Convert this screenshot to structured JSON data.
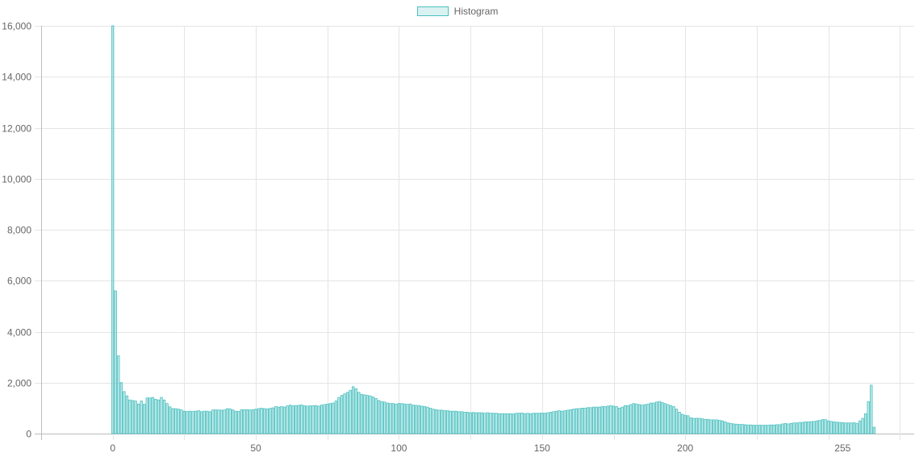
{
  "chart_data": {
    "type": "bar",
    "series": [
      {
        "name": "Histogram",
        "color": "#4bc0c0",
        "x_start": 0,
        "values": [
          16000,
          5600,
          3050,
          2000,
          1650,
          1480,
          1320,
          1300,
          1280,
          1160,
          1280,
          1150,
          1400,
          1400,
          1420,
          1350,
          1320,
          1420,
          1320,
          1180,
          1050,
          980,
          980,
          960,
          930,
          880,
          870,
          880,
          870,
          880,
          900,
          860,
          880,
          880,
          860,
          930,
          930,
          930,
          920,
          930,
          980,
          970,
          930,
          880,
          870,
          940,
          940,
          940,
          930,
          940,
          960,
          980,
          1000,
          980,
          970,
          990,
          1010,
          1060,
          1040,
          1060,
          1040,
          1090,
          1120,
          1090,
          1100,
          1110,
          1130,
          1090,
          1080,
          1090,
          1100,
          1100,
          1080,
          1120,
          1140,
          1160,
          1180,
          1200,
          1280,
          1420,
          1500,
          1560,
          1620,
          1700,
          1840,
          1760,
          1620,
          1540,
          1520,
          1500,
          1480,
          1440,
          1380,
          1300,
          1260,
          1240,
          1200,
          1180,
          1180,
          1160,
          1180,
          1180,
          1160,
          1150,
          1160,
          1120,
          1110,
          1100,
          1080,
          1060,
          1040,
          1000,
          960,
          940,
          920,
          920,
          900,
          900,
          880,
          880,
          880,
          860,
          860,
          840,
          840,
          820,
          830,
          820,
          820,
          820,
          800,
          820,
          800,
          800,
          800,
          780,
          780,
          780,
          780,
          780,
          770,
          800,
          800,
          810,
          780,
          800,
          780,
          800,
          800,
          800,
          810,
          800,
          820,
          840,
          860,
          880,
          900,
          880,
          900,
          920,
          940,
          960,
          980,
          980,
          1000,
          1000,
          1020,
          1020,
          1040,
          1040,
          1040,
          1060,
          1060,
          1080,
          1100,
          1080,
          1060,
          1000,
          1040,
          1100,
          1100,
          1140,
          1180,
          1160,
          1140,
          1120,
          1140,
          1160,
          1200,
          1200,
          1240,
          1260,
          1220,
          1180,
          1140,
          1100,
          1060,
          960,
          840,
          760,
          720,
          700,
          620,
          600,
          600,
          600,
          580,
          560,
          560,
          540,
          540,
          540,
          520,
          500,
          460,
          420,
          400,
          380,
          370,
          360,
          360,
          350,
          340,
          340,
          330,
          330,
          330,
          330,
          330,
          330,
          340,
          340,
          350,
          350,
          380,
          400,
          380,
          400,
          420,
          420,
          440,
          440,
          460,
          460,
          470,
          480,
          500,
          520,
          550,
          550,
          500,
          480,
          460,
          450,
          440,
          430,
          420,
          420,
          420,
          430,
          400,
          500,
          600,
          780,
          1250,
          1900,
          250
        ]
      }
    ],
    "ylim": [
      0,
      16000
    ],
    "y_ticks": [
      "0",
      "2,000",
      "4,000",
      "6,000",
      "8,000",
      "10,000",
      "12,000",
      "14,000",
      "16,000"
    ],
    "xlim": [
      -25,
      280
    ],
    "x_tick_values": [
      0,
      50,
      100,
      150,
      200,
      255
    ],
    "x_ticks": [
      "0",
      "50",
      "100",
      "150",
      "200",
      "255"
    ],
    "grid": true,
    "legend_position": "top-center"
  }
}
